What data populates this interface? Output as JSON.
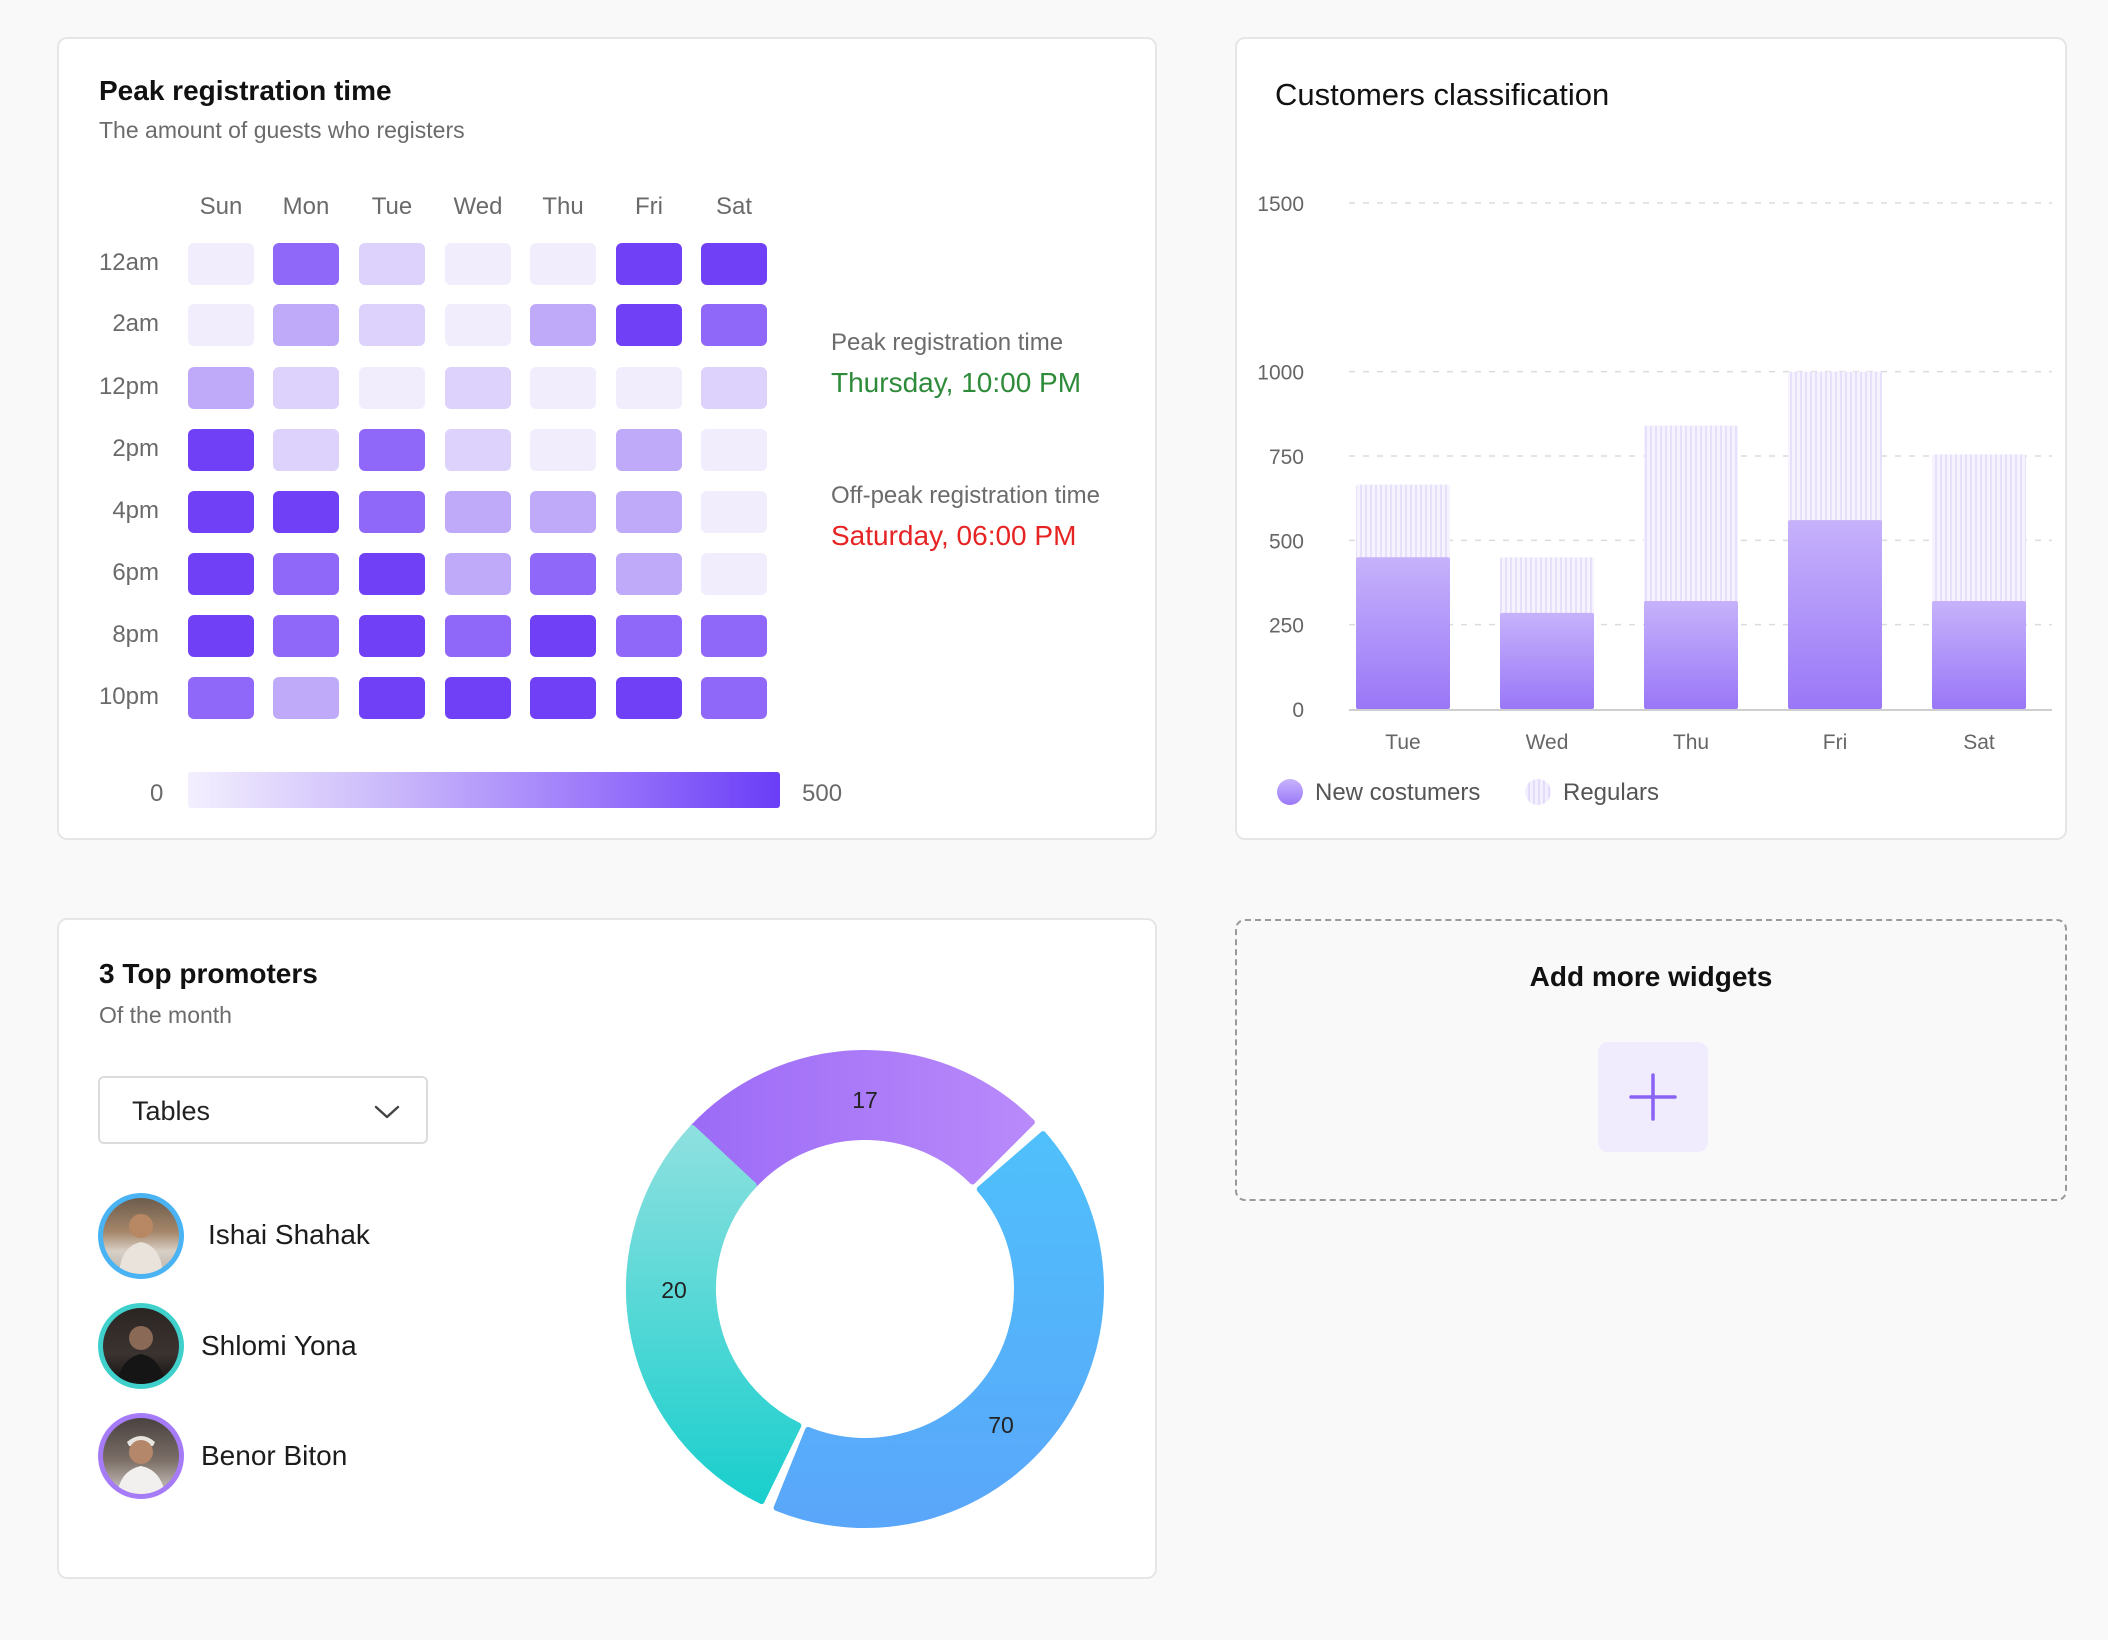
{
  "heatmap": {
    "title": "Peak registration time",
    "subtitle": "The amount of guests who registers",
    "days": [
      "Sun",
      "Mon",
      "Tue",
      "Wed",
      "Thu",
      "Fri",
      "Sat"
    ],
    "times": [
      "12am",
      "2am",
      "12pm",
      "2pm",
      "4pm",
      "6pm",
      "8pm",
      "10pm"
    ],
    "levels": [
      [
        1,
        4,
        2,
        1,
        1,
        5,
        5
      ],
      [
        1,
        3,
        2,
        1,
        3,
        5,
        4
      ],
      [
        3,
        2,
        1,
        2,
        1,
        1,
        2
      ],
      [
        5,
        2,
        4,
        2,
        1,
        3,
        1
      ],
      [
        5,
        5,
        4,
        3,
        3,
        3,
        1
      ],
      [
        5,
        4,
        5,
        3,
        4,
        3,
        1
      ],
      [
        5,
        4,
        5,
        4,
        5,
        4,
        4
      ],
      [
        4,
        3,
        5,
        5,
        5,
        5,
        4
      ]
    ],
    "level_colors": [
      "#ffffff",
      "#f1edfd",
      "#ddd2fc",
      "#bfaafa",
      "#9068f9",
      "#7040f7"
    ],
    "scale_min": "0",
    "scale_max": "500",
    "peak_label": "Peak registration time",
    "peak_value": "Thursday, 10:00 PM",
    "offpeak_label": "Off-peak registration time",
    "offpeak_value": "Saturday, 06:00 PM",
    "peak_color": "#2e8b3a",
    "offpeak_color": "#e62424"
  },
  "classification": {
    "title": "Customers classification",
    "legend_new": "New costumers",
    "legend_regular": "Regulars"
  },
  "chart_data": {
    "type": "bar",
    "title": "Customers classification",
    "categories": [
      "Tue",
      "Wed",
      "Thu",
      "Fri",
      "Sat"
    ],
    "series": [
      {
        "name": "New costumers",
        "values": [
          450,
          285,
          320,
          560,
          320
        ]
      },
      {
        "name": "Regulars",
        "values": [
          665,
          450,
          840,
          1000,
          755
        ]
      }
    ],
    "ylim": [
      0,
      1500
    ],
    "yticks": [
      0,
      250,
      500,
      750,
      1000,
      1500
    ],
    "grid": true,
    "legend": "bottom-left"
  },
  "promoters": {
    "title": "3 Top promoters",
    "subtitle": "Of the month",
    "dropdown_value": "Tables",
    "people": [
      {
        "name": "Ishai Shahak",
        "ring": "#4ab3f4"
      },
      {
        "name": "Shlomi Yona",
        "ring": "#3fd0cc"
      },
      {
        "name": "Benor Biton",
        "ring": "#a57bf7"
      }
    ],
    "donut": [
      {
        "value": "17",
        "color_a": "#9c6bf7",
        "color_b": "#b98afa"
      },
      {
        "value": "70",
        "color_a": "#4fc0fb",
        "color_b": "#5aa6fa"
      },
      {
        "value": "20",
        "color_a": "#19cfcd",
        "color_b": "#8ee0df"
      }
    ]
  },
  "add_widgets": {
    "title": "Add more widgets"
  }
}
